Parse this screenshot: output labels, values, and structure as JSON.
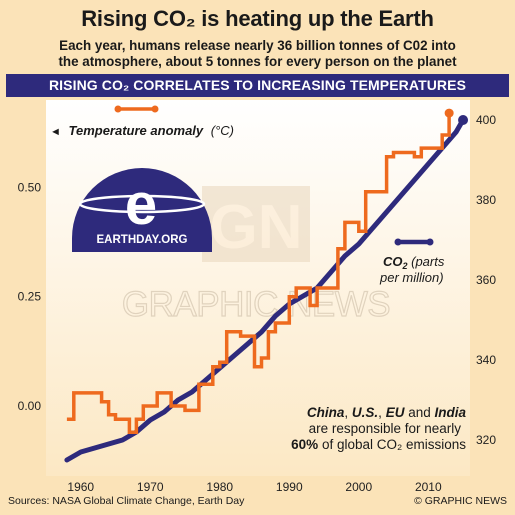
{
  "header": {
    "title": "Rising CO₂ is heating up the Earth",
    "subtitle_line1": "Each year, humans release nearly 36 billion tonnes of C02 into",
    "subtitle_line2": "the atmosphere, about 5 tonnes for every person on the planet",
    "banner": "RISING CO₂ CORRELATES TO INCREASING TEMPERATURES"
  },
  "logo": {
    "text": "EARTHDAY.ORG",
    "letter": "e"
  },
  "watermark": {
    "text": "GRAPHIC NEWS",
    "monogram": "GN"
  },
  "legend": {
    "temperature": {
      "arrow": "◄",
      "label": "Temperature anomaly",
      "unit": "(°C)"
    },
    "co2": {
      "label_prefix": "CO",
      "label_sub": "2",
      "label_rest": " (parts",
      "line2": "per million)"
    }
  },
  "annotation": {
    "line1_parts": [
      "China",
      ", ",
      "U.S.",
      ", ",
      "EU",
      " and ",
      "India"
    ],
    "line2": "are responsible for nearly",
    "line3_bold": "60%",
    "line3_rest": " of global CO₂ emissions"
  },
  "footer": {
    "sources": "Sources: NASA Global Climate Change, Earth Day",
    "credit": "© GRAPHIC NEWS"
  },
  "colors": {
    "background": "#fbe3b8",
    "plot_gradient_top": "#ffffff",
    "plot_gradient_bottom": "#fce8c4",
    "banner": "#2e2a7c",
    "temperature_line": "#ee6a1e",
    "co2_line": "#2e2a7c"
  },
  "chart_data": {
    "type": "line",
    "x_ticks": [
      1960,
      1970,
      1980,
      1990,
      2000,
      2010
    ],
    "xlim": [
      1955,
      2016
    ],
    "left_axis": {
      "ticks": [
        "0.00",
        "0.25",
        "0.50"
      ],
      "tick_values": [
        0,
        0.25,
        0.5
      ],
      "ylim": [
        -0.16,
        0.7
      ]
    },
    "right_axis": {
      "ticks": [
        "320",
        "340",
        "360",
        "380",
        "400"
      ],
      "tick_values": [
        320,
        340,
        360,
        380,
        400
      ],
      "ylim": [
        311,
        405
      ]
    },
    "series": [
      {
        "name": "Temperature anomaly (°C)",
        "axis": "left",
        "x": [
          1958,
          1959,
          1960,
          1961,
          1962,
          1963,
          1964,
          1965,
          1966,
          1967,
          1968,
          1969,
          1970,
          1971,
          1972,
          1973,
          1974,
          1975,
          1976,
          1977,
          1978,
          1979,
          1980,
          1981,
          1982,
          1983,
          1984,
          1985,
          1986,
          1987,
          1988,
          1989,
          1990,
          1991,
          1992,
          1993,
          1994,
          1995,
          1996,
          1997,
          1998,
          1999,
          2000,
          2001,
          2002,
          2003,
          2004,
          2005,
          2006,
          2007,
          2008,
          2009,
          2010,
          2011,
          2012,
          2013
        ],
        "values": [
          -0.03,
          0.03,
          0.03,
          0.03,
          0.03,
          0.01,
          -0.02,
          -0.03,
          -0.03,
          -0.06,
          -0.03,
          0.0,
          0.0,
          0.03,
          0.03,
          0.0,
          0.0,
          -0.01,
          -0.01,
          0.05,
          0.05,
          0.09,
          0.1,
          0.17,
          0.17,
          0.16,
          0.16,
          0.09,
          0.11,
          0.17,
          0.19,
          0.19,
          0.25,
          0.27,
          0.27,
          0.23,
          0.27,
          0.27,
          0.27,
          0.36,
          0.42,
          0.42,
          0.4,
          0.49,
          0.49,
          0.49,
          0.57,
          0.58,
          0.58,
          0.58,
          0.57,
          0.59,
          0.59,
          0.59,
          0.62,
          0.67
        ]
      },
      {
        "name": "CO₂ (parts per million)",
        "axis": "right",
        "x": [
          1958,
          1960,
          1962,
          1964,
          1966,
          1968,
          1970,
          1972,
          1974,
          1976,
          1978,
          1980,
          1982,
          1984,
          1986,
          1988,
          1990,
          1992,
          1994,
          1996,
          1998,
          2000,
          2002,
          2004,
          2006,
          2008,
          2010,
          2012,
          2014,
          2015
        ],
        "values": [
          315,
          317,
          318,
          319,
          320,
          322,
          325,
          327,
          330,
          332,
          335,
          338,
          341,
          344,
          347,
          351,
          354,
          356,
          358,
          362,
          366,
          369,
          373,
          377,
          381,
          385,
          389,
          393,
          397,
          400
        ]
      }
    ],
    "grid": false,
    "legend": "inline labels"
  }
}
